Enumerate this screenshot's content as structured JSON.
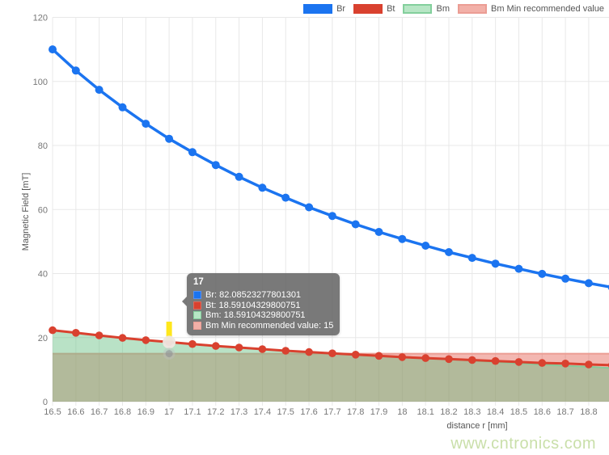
{
  "page": {
    "background": "#ffffff",
    "watermark": "www.cntronics.com"
  },
  "legend": {
    "items": [
      {
        "label": "Br",
        "swatch_fill": "#1b74f0",
        "swatch_border": "#1b74f0"
      },
      {
        "label": "Bt",
        "swatch_fill": "#d9412f",
        "swatch_border": "#d9412f"
      },
      {
        "label": "Bm",
        "swatch_fill": "#b7e6c5",
        "swatch_border": "#83cf9c"
      },
      {
        "label": "Bm Min recommended value",
        "swatch_fill": "#f2b0a8",
        "swatch_border": "#eb9d94"
      }
    ]
  },
  "axes": {
    "x": {
      "title": "distance r [mm]",
      "tick_labels": [
        "16.5",
        "16.6",
        "16.7",
        "16.8",
        "16.9",
        "17",
        "17.1",
        "17.2",
        "17.3",
        "17.4",
        "17.5",
        "17.6",
        "17.7",
        "17.8",
        "17.9",
        "18",
        "18.1",
        "18.2",
        "18.3",
        "18.4",
        "18.5",
        "18.6",
        "18.7",
        "18.8"
      ]
    },
    "y": {
      "title": "Magnetic Field [mT]",
      "tick_labels": [
        "0",
        "20",
        "40",
        "60",
        "80",
        "100",
        "120"
      ],
      "min": 0,
      "max": 120
    }
  },
  "tooltip": {
    "title": "17",
    "rows": [
      {
        "text": "Br: 82.08523277801301",
        "swatch_fill": "#1b74f0",
        "swatch_border": "#5490f2"
      },
      {
        "text": "Bt: 18.59104329800751",
        "swatch_fill": "#d9412f",
        "swatch_border": "#e0695a"
      },
      {
        "text": "Bm: 18.59104329800751",
        "swatch_fill": "#b7e6c5",
        "swatch_border": "#83cf9c"
      },
      {
        "text": "Bm Min recommended value: 15",
        "swatch_fill": "#f2b0a8",
        "swatch_border": "#eb9d94"
      }
    ]
  },
  "chart_data": {
    "type": "line",
    "title": "",
    "xlabel": "distance r [mm]",
    "ylabel": "Magnetic Field [mT]",
    "xlim": [
      16.5,
      18.887
    ],
    "ylim": [
      0,
      120
    ],
    "grid": true,
    "legend_position": "top-right",
    "x": [
      16.5,
      16.6,
      16.7,
      16.8,
      16.9,
      17,
      17.1,
      17.2,
      17.3,
      17.4,
      17.5,
      17.6,
      17.7,
      17.8,
      17.9,
      18,
      18.1,
      18.2,
      18.3,
      18.4,
      18.5,
      18.6,
      18.7,
      18.8,
      18.9
    ],
    "series": [
      {
        "name": "Br",
        "render": "line",
        "color": "#1b74f0",
        "line_width": 3.5,
        "point_radius": 5,
        "values": [
          110,
          103.4,
          97.4,
          91.9,
          86.8,
          82.08523277801301,
          77.9,
          73.9,
          70.2,
          66.8,
          63.7,
          60.7,
          58.0,
          55.4,
          53.0,
          50.8,
          48.7,
          46.7,
          44.9,
          43.1,
          41.5,
          39.9,
          38.4,
          37.0,
          35.7
        ]
      },
      {
        "name": "Bt",
        "render": "line",
        "color": "#d9412f",
        "line_width": 3,
        "point_radius": 4.8,
        "values": [
          22.3,
          21.5,
          20.7,
          19.9,
          19.2,
          18.59104329800751,
          18.0,
          17.4,
          16.9,
          16.4,
          15.9,
          15.5,
          15.1,
          14.7,
          14.3,
          13.9,
          13.6,
          13.3,
          13.0,
          12.7,
          12.4,
          12.1,
          11.9,
          11.6,
          11.4
        ]
      },
      {
        "name": "Bm",
        "render": "area",
        "line_color": "#7ecb98",
        "line_width": 2,
        "fill_color": "rgba(99,190,128,0.45)",
        "values": [
          22.3,
          21.5,
          20.7,
          19.9,
          19.2,
          18.59104329800751,
          18.0,
          17.4,
          16.9,
          16.4,
          15.9,
          15.5,
          15.1,
          14.7,
          14.3,
          13.9,
          13.6,
          13.3,
          12.8,
          12.4,
          12.0,
          11.6,
          11.2,
          10.9,
          10.5
        ]
      },
      {
        "name": "Bm Min recommended value",
        "render": "area",
        "line_color": "#eb9d94",
        "line_width": 2,
        "fill_color": "rgba(225,75,60,0.4)",
        "constant_value": 15
      }
    ],
    "hover": {
      "x": 17,
      "marker_color": "#ffe71c",
      "highlighted_series": [
        "Bt",
        "Bm Min recommended value"
      ]
    }
  }
}
